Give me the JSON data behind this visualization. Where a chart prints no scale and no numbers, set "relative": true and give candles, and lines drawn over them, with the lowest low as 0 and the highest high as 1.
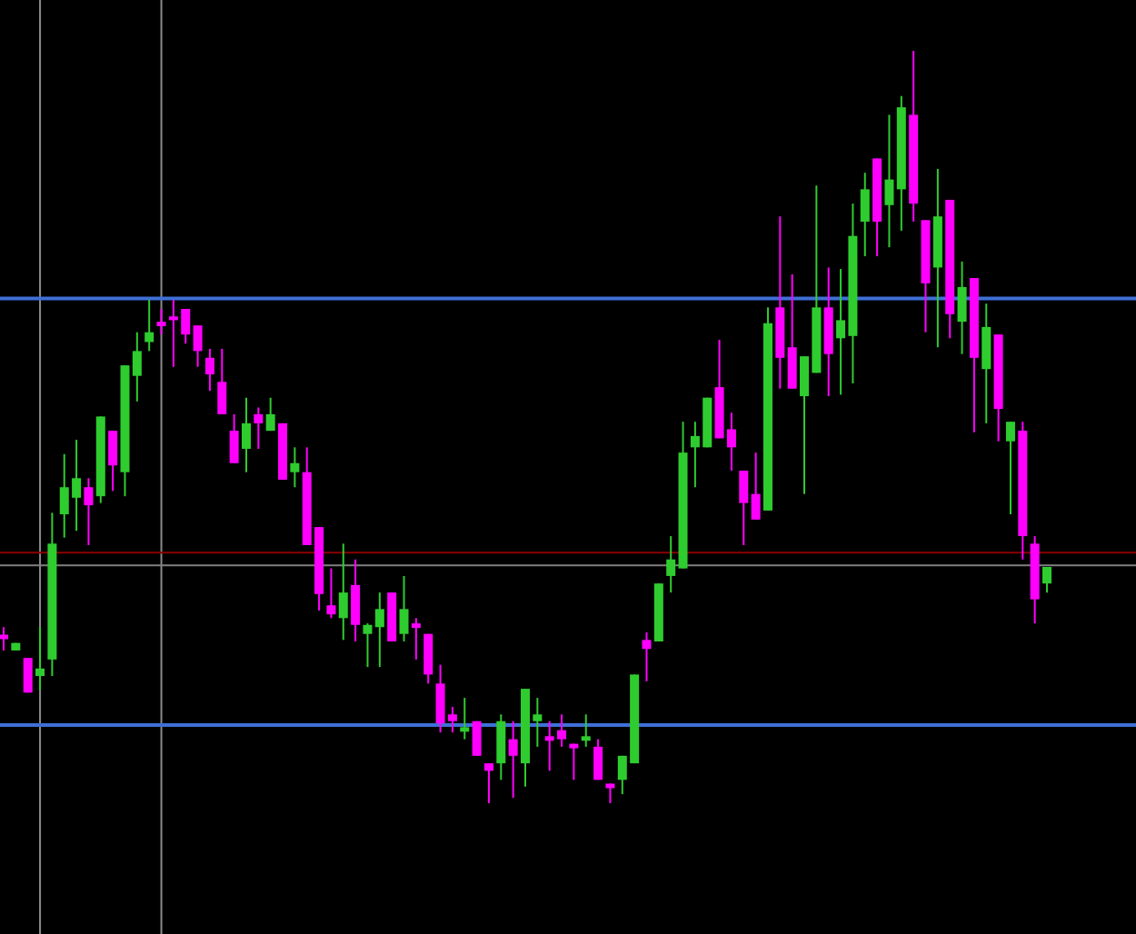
{
  "chart_data": {
    "type": "candlestick",
    "relative": true,
    "categories": [
      null,
      null,
      null,
      null,
      null,
      null,
      null,
      null,
      null,
      null,
      null,
      null,
      null,
      null,
      null,
      null,
      null,
      null,
      null,
      null,
      null,
      null,
      null,
      null,
      null,
      null,
      null,
      null,
      null,
      null,
      null,
      null,
      null,
      null,
      null,
      null,
      null,
      null,
      null,
      null,
      null,
      null,
      null,
      null,
      null,
      null,
      null,
      null,
      null,
      null,
      null,
      null,
      null,
      null,
      null,
      null,
      null,
      null,
      null,
      null,
      null,
      null,
      null,
      null,
      null,
      null,
      null,
      null,
      null,
      null,
      null,
      null,
      null,
      null,
      null,
      null,
      null,
      null,
      null,
      null,
      null,
      null,
      null,
      null,
      null,
      null,
      null
    ],
    "ohlc": [
      [
        0.224,
        0.234,
        0.203,
        0.218
      ],
      [
        0.203,
        0.213,
        0.203,
        0.213
      ],
      [
        0.193,
        0.193,
        0.147,
        0.147
      ],
      [
        0.169,
        0.234,
        0.15,
        0.179
      ],
      [
        0.191,
        0.386,
        0.169,
        0.345
      ],
      [
        0.384,
        0.464,
        0.353,
        0.42
      ],
      [
        0.406,
        0.483,
        0.362,
        0.432
      ],
      [
        0.42,
        0.432,
        0.343,
        0.396
      ],
      [
        0.408,
        0.514,
        0.399,
        0.514
      ],
      [
        0.495,
        0.495,
        0.415,
        0.449
      ],
      [
        0.44,
        0.582,
        0.408,
        0.582
      ],
      [
        0.568,
        0.626,
        0.534,
        0.601
      ],
      [
        0.613,
        0.669,
        0.601,
        0.626
      ],
      [
        0.64,
        0.657,
        0.623,
        0.634
      ],
      [
        0.647,
        0.669,
        0.58,
        0.642
      ],
      [
        0.657,
        0.657,
        0.611,
        0.623
      ],
      [
        0.635,
        0.635,
        0.58,
        0.601
      ],
      [
        0.592,
        0.604,
        0.548,
        0.57
      ],
      [
        0.56,
        0.604,
        0.517,
        0.517
      ],
      [
        0.495,
        0.517,
        0.452,
        0.452
      ],
      [
        0.471,
        0.539,
        0.44,
        0.505
      ],
      [
        0.517,
        0.526,
        0.471,
        0.505
      ],
      [
        0.495,
        0.539,
        0.495,
        0.517
      ],
      [
        0.505,
        0.505,
        0.43,
        0.43
      ],
      [
        0.44,
        0.473,
        0.42,
        0.452
      ],
      [
        0.44,
        0.473,
        0.343,
        0.343
      ],
      [
        0.367,
        0.367,
        0.256,
        0.278
      ],
      [
        0.263,
        0.312,
        0.246,
        0.251
      ],
      [
        0.246,
        0.345,
        0.217,
        0.28
      ],
      [
        0.29,
        0.324,
        0.215,
        0.237
      ],
      [
        0.225,
        0.239,
        0.181,
        0.237
      ],
      [
        0.234,
        0.28,
        0.181,
        0.258
      ],
      [
        0.28,
        0.28,
        0.215,
        0.215
      ],
      [
        0.225,
        0.302,
        0.215,
        0.258
      ],
      [
        0.239,
        0.246,
        0.191,
        0.233
      ],
      [
        0.225,
        0.225,
        0.159,
        0.171
      ],
      [
        0.159,
        0.184,
        0.094,
        0.106
      ],
      [
        0.118,
        0.128,
        0.094,
        0.109
      ],
      [
        0.095,
        0.14,
        0.085,
        0.101
      ],
      [
        0.109,
        0.109,
        0.063,
        0.063
      ],
      [
        0.053,
        0.053,
        0,
        0.043
      ],
      [
        0.053,
        0.118,
        0.031,
        0.109
      ],
      [
        0.085,
        0.109,
        0.007,
        0.063
      ],
      [
        0.053,
        0.152,
        0.022,
        0.152
      ],
      [
        0.109,
        0.14,
        0.075,
        0.118
      ],
      [
        0.089,
        0.109,
        0.043,
        0.083
      ],
      [
        0.097,
        0.118,
        0.075,
        0.085
      ],
      [
        0.079,
        0.079,
        0.031,
        0.073
      ],
      [
        0.083,
        0.118,
        0.075,
        0.089
      ],
      [
        0.075,
        0.085,
        0.031,
        0.031
      ],
      [
        0.026,
        0.026,
        0,
        0.02
      ],
      [
        0.031,
        0.063,
        0.012,
        0.063
      ],
      [
        0.053,
        0.171,
        0.053,
        0.171
      ],
      [
        0.217,
        0.227,
        0.162,
        0.205
      ],
      [
        0.215,
        0.292,
        0.215,
        0.292
      ],
      [
        0.302,
        0.355,
        0.28,
        0.324
      ],
      [
        0.312,
        0.507,
        0.312,
        0.466
      ],
      [
        0.473,
        0.507,
        0.42,
        0.488
      ],
      [
        0.473,
        0.539,
        0.473,
        0.539
      ],
      [
        0.553,
        0.616,
        0.485,
        0.485
      ],
      [
        0.497,
        0.519,
        0.442,
        0.473
      ],
      [
        0.442,
        0.442,
        0.343,
        0.399
      ],
      [
        0.411,
        0.466,
        0.377,
        0.377
      ],
      [
        0.389,
        0.659,
        0.389,
        0.638
      ],
      [
        0.659,
        0.78,
        0.551,
        0.592
      ],
      [
        0.606,
        0.703,
        0.551,
        0.551
      ],
      [
        0.541,
        0.594,
        0.411,
        0.594
      ],
      [
        0.572,
        0.821,
        0.572,
        0.659
      ],
      [
        0.659,
        0.712,
        0.541,
        0.597
      ],
      [
        0.618,
        0.71,
        0.543,
        0.642
      ],
      [
        0.621,
        0.797,
        0.558,
        0.754
      ],
      [
        0.773,
        0.838,
        0.727,
        0.816
      ],
      [
        0.857,
        0.857,
        0.727,
        0.773
      ],
      [
        0.795,
        0.915,
        0.739,
        0.829
      ],
      [
        0.816,
        0.94,
        0.761,
        0.925
      ],
      [
        0.915,
        1,
        0.773,
        0.797
      ],
      [
        0.775,
        0.775,
        0.626,
        0.691
      ],
      [
        0.712,
        0.843,
        0.606,
        0.78
      ],
      [
        0.802,
        0.802,
        0.618,
        0.65
      ],
      [
        0.64,
        0.72,
        0.597,
        0.686
      ],
      [
        0.698,
        0.698,
        0.493,
        0.592
      ],
      [
        0.577,
        0.664,
        0.505,
        0.633
      ],
      [
        0.623,
        0.623,
        0.481,
        0.524
      ],
      [
        0.481,
        0.507,
        0.384,
        0.507
      ],
      [
        0.495,
        0.507,
        0.324,
        0.355
      ],
      [
        0.345,
        0.355,
        0.239,
        0.271
      ],
      [
        0.292,
        0.314,
        0.28,
        0.314
      ]
    ],
    "ref_lines": [
      {
        "axis": "y",
        "value": 0.671,
        "color": "#3f6fd6"
      },
      {
        "axis": "y",
        "value": 0.104,
        "color": "#3f6fd6"
      },
      {
        "axis": "y",
        "value": 0.333,
        "color": "#8b0000"
      },
      {
        "axis": "y",
        "value": 0.316,
        "color": "#808080"
      }
    ]
  }
}
